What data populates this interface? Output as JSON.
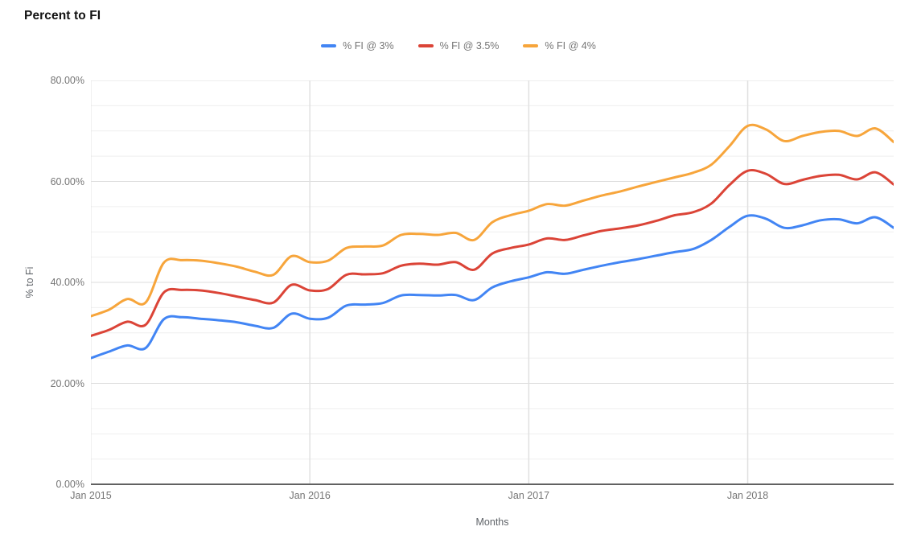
{
  "title": "Percent to FI",
  "axes": {
    "x_title": "Months",
    "y_title": "% to Fi"
  },
  "colors": {
    "series_blue": "#4285F4",
    "series_red": "#DB4437",
    "series_orange": "#F7A53B",
    "grid_minor": "#efefef",
    "grid_major": "#dcdcdc",
    "grid_vertical": "#e0e0e0",
    "axis_line": "#616161",
    "tick_text": "#757575"
  },
  "chart_data": {
    "type": "line",
    "title": "Percent to FI",
    "xlabel": "Months",
    "ylabel": "% to Fi",
    "ylim": [
      0,
      80
    ],
    "y_major_step": 20,
    "y_minor_step": 5,
    "grid": true,
    "legend_position": "top-center",
    "x_start": "Jan 2015",
    "x_end": "Sep 2018",
    "points_per_series": 45,
    "y_tick_labels": [
      "0.00%",
      "20.00%",
      "40.00%",
      "60.00%",
      "80.00%"
    ],
    "x_ticks": [
      {
        "label": "Jan 2015",
        "index": 0
      },
      {
        "label": "Jan 2016",
        "index": 12
      },
      {
        "label": "Jan 2017",
        "index": 24
      },
      {
        "label": "Jan 2018",
        "index": 36
      }
    ],
    "series": [
      {
        "name": "% FI @ 3%",
        "color": "#4285F4",
        "values": [
          25.0,
          26.3,
          27.5,
          27.0,
          32.7,
          33.1,
          32.8,
          32.5,
          32.1,
          31.4,
          31.0,
          33.8,
          32.8,
          33.0,
          35.4,
          35.6,
          35.9,
          37.4,
          37.5,
          37.4,
          37.5,
          36.5,
          39.0,
          40.2,
          41.0,
          42.0,
          41.7,
          42.5,
          43.3,
          44.0,
          44.6,
          45.3,
          46.0,
          46.6,
          48.4,
          51.0,
          53.2,
          52.6,
          50.8,
          51.3,
          52.3,
          52.5,
          51.7,
          52.9,
          50.8
        ]
      },
      {
        "name": "% FI @ 3.5%",
        "color": "#DB4437",
        "values": [
          29.4,
          30.6,
          32.2,
          31.6,
          38.0,
          38.5,
          38.4,
          37.9,
          37.2,
          36.5,
          36.0,
          39.5,
          38.4,
          38.7,
          41.5,
          41.6,
          41.8,
          43.3,
          43.7,
          43.5,
          44.0,
          42.5,
          45.7,
          46.8,
          47.5,
          48.7,
          48.4,
          49.3,
          50.2,
          50.7,
          51.3,
          52.2,
          53.3,
          53.9,
          55.6,
          59.3,
          62.1,
          61.5,
          59.5,
          60.3,
          61.1,
          61.3,
          60.4,
          61.8,
          59.4
        ]
      },
      {
        "name": "% FI @ 4%",
        "color": "#F7A53B",
        "values": [
          33.3,
          34.6,
          36.7,
          36.0,
          43.9,
          44.4,
          44.3,
          43.8,
          43.1,
          42.1,
          41.5,
          45.2,
          44.0,
          44.3,
          46.8,
          47.1,
          47.3,
          49.4,
          49.6,
          49.4,
          49.8,
          48.4,
          51.9,
          53.3,
          54.2,
          55.5,
          55.2,
          56.2,
          57.2,
          58.0,
          59.0,
          59.9,
          60.8,
          61.7,
          63.3,
          67.0,
          71.0,
          70.3,
          68.0,
          69.0,
          69.8,
          70.0,
          69.0,
          70.5,
          67.8
        ]
      }
    ]
  }
}
